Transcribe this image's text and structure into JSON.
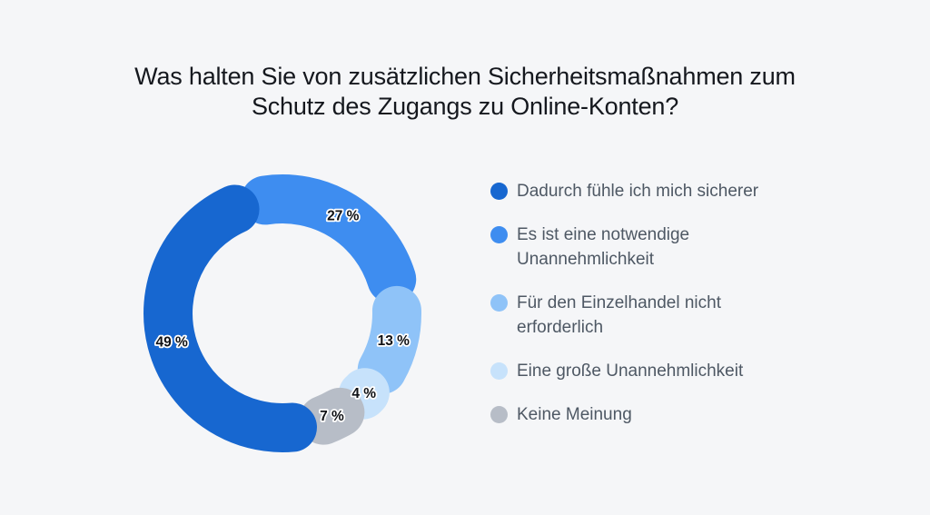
{
  "title": {
    "line1": "Was halten Sie von zusätzlichen Sicherheitsmaßnahmen zum",
    "line2": "Schutz des Zugangs zu Online-Konten?"
  },
  "colors": {
    "background": "#F5F6F8",
    "title_text": "#15181E",
    "legend_text": "#4E5864",
    "segment_label_text": "#101216",
    "segment_label_outline": "#FFFFFF"
  },
  "chart_data": {
    "type": "pie",
    "variant": "donut-rounded-segments",
    "title": "Was halten Sie von zusätzlichen Sicherheitsmaßnahmen zum Schutz des Zugangs zu Online-Konten?",
    "unit": "%",
    "total": 100,
    "segments": [
      {
        "label": "Dadurch fühle ich mich sicherer",
        "value": 49,
        "value_label": "49 %",
        "color": "#1767D0"
      },
      {
        "label": "Es ist eine notwendige Unannehmlichkeit",
        "value": 27,
        "value_label": "27 %",
        "color": "#3E8DF0"
      },
      {
        "label": "Für den Einzelhandel nicht erforderlich",
        "value": 13,
        "value_label": "13 %",
        "color": "#8FC3F8"
      },
      {
        "label": "Eine große Unannehmlichkeit",
        "value": 4,
        "value_label": "4 %",
        "color": "#C7E2FB"
      },
      {
        "label": "Keine Meinung",
        "value": 7,
        "value_label": "7 %",
        "color": "#B7BDC7"
      }
    ],
    "layout": {
      "legend_position": "right",
      "labels_on_segments": true,
      "start_angle_deg": -16.6,
      "pad_angle_deg": 8,
      "draw_order": [
        1,
        2,
        3,
        4,
        0
      ],
      "ring_radius": 126,
      "ring_thickness": 54
    }
  }
}
